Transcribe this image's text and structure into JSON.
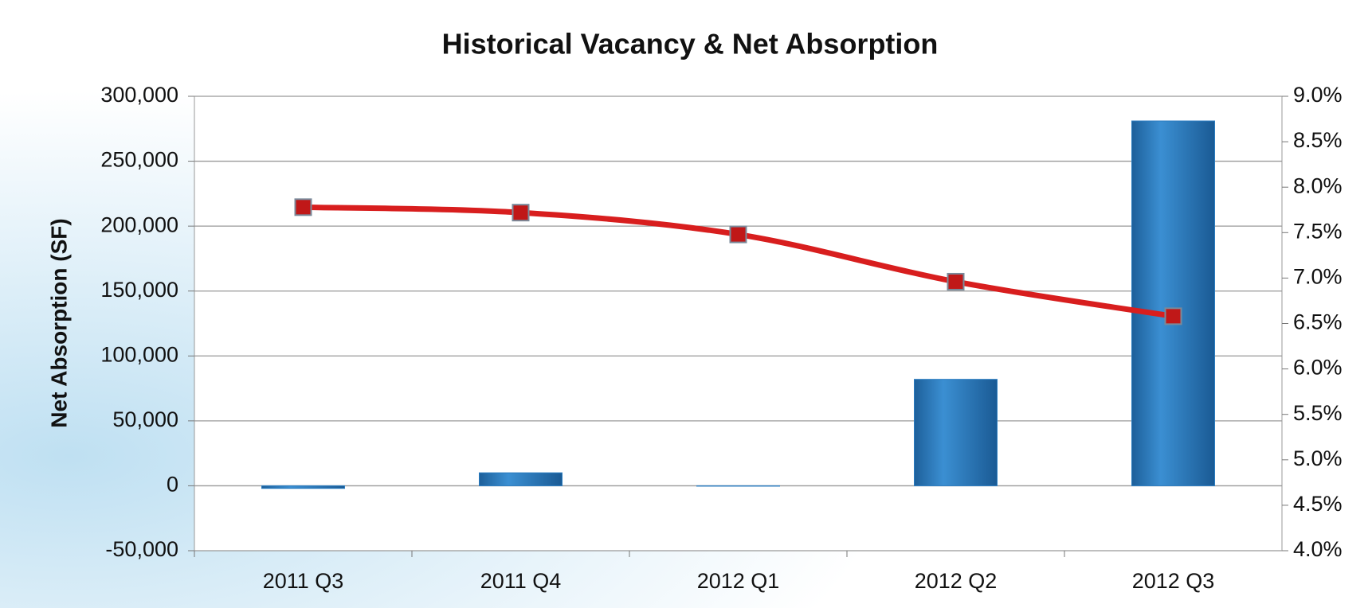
{
  "chart_data": {
    "type": "bar",
    "title": "Historical Vacancy & Net Absorption",
    "y_label": "Net Absorption (SF)",
    "categories": [
      "2011 Q3",
      "2011 Q4",
      "2012 Q1",
      "2012 Q2",
      "2012 Q3"
    ],
    "series": [
      {
        "color": "#2a7cc0",
        "values": [
          -2000,
          10000,
          0,
          82000,
          281000
        ]
      },
      {
        "color": "#d81e1e",
        "marker_color": "#c01818",
        "mark": "line",
        "axis": "y2",
        "values": [
          7.78,
          7.72,
          7.48,
          6.96,
          6.58
        ]
      }
    ],
    "ylim": [
      -50000,
      300000
    ],
    "yticks": [
      {
        "value": -50000,
        "label": "-50,000"
      },
      0,
      {
        "value": 50000,
        "label": "50,000"
      },
      {
        "value": 100000,
        "label": "100,000"
      },
      {
        "value": 150000,
        "label": "150,000"
      },
      {
        "value": 200000,
        "label": "200,000"
      },
      {
        "value": 250000,
        "label": "250,000"
      },
      {
        "value": 300000,
        "label": "300,000"
      }
    ],
    "y2lim": [
      4,
      9
    ],
    "y2ticks": [
      {
        "value": 4,
        "label": "4.0%"
      },
      {
        "value": 4.5,
        "label": "4.5%"
      },
      {
        "value": 5,
        "label": "5.0%"
      },
      {
        "value": 5.5,
        "label": "5.5%"
      },
      {
        "value": 6,
        "label": "6.0%"
      },
      {
        "value": 6.5,
        "label": "6.5%"
      },
      {
        "value": 7,
        "label": "7.0%"
      },
      {
        "value": 7.5,
        "label": "7.5%"
      },
      {
        "value": 8,
        "label": "8.0%"
      },
      {
        "value": 8.5,
        "label": "8.5%"
      },
      {
        "value": 9,
        "label": "9.0%"
      }
    ],
    "grid": true
  }
}
